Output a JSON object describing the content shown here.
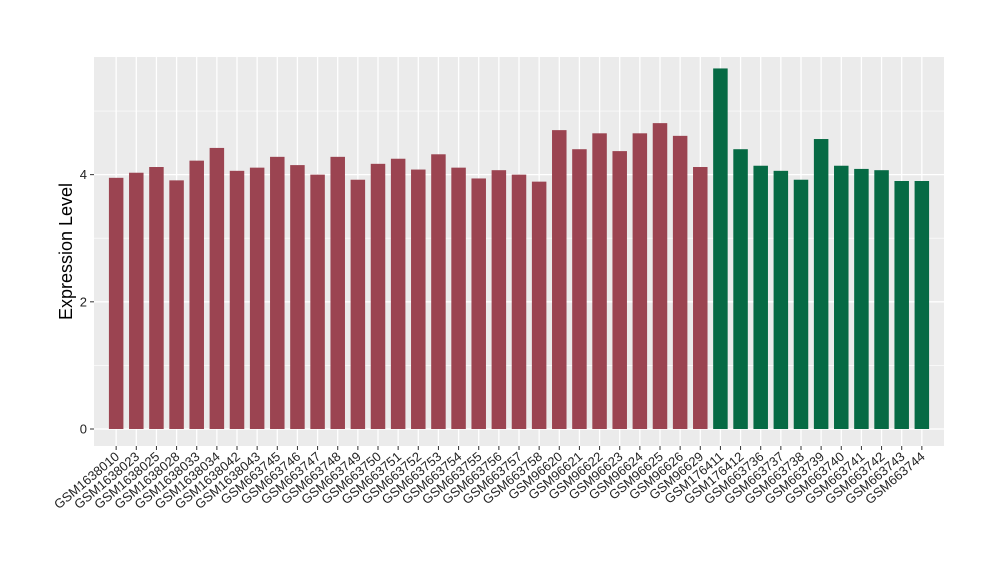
{
  "chart_data": {
    "type": "bar",
    "title": "",
    "xlabel": "",
    "ylabel": "Expression Level",
    "ylim": [
      0,
      5.85
    ],
    "yticks": [
      0,
      2,
      4
    ],
    "grid": true,
    "legend": "none",
    "colors": {
      "group1": "#9b4451",
      "group2": "#066a44",
      "panel": "#ebebeb",
      "gridline": "#ffffff"
    },
    "categories": [
      "GSM1638010",
      "GSM1638023",
      "GSM1638025",
      "GSM1638028",
      "GSM1638033",
      "GSM1638034",
      "GSM1638042",
      "GSM1638043",
      "GSM663745",
      "GSM663746",
      "GSM663747",
      "GSM663748",
      "GSM663749",
      "GSM663750",
      "GSM663751",
      "GSM663752",
      "GSM663753",
      "GSM663754",
      "GSM663755",
      "GSM663756",
      "GSM663757",
      "GSM663758",
      "GSM96620",
      "GSM96621",
      "GSM96622",
      "GSM96623",
      "GSM96624",
      "GSM96625",
      "GSM96626",
      "GSM96629",
      "GSM176411",
      "GSM176412",
      "GSM663736",
      "GSM663737",
      "GSM663738",
      "GSM663739",
      "GSM663740",
      "GSM663741",
      "GSM663742",
      "GSM663743",
      "GSM663744"
    ],
    "values": [
      3.95,
      4.03,
      4.12,
      3.91,
      4.22,
      4.42,
      4.06,
      4.11,
      4.28,
      4.15,
      4.0,
      4.28,
      3.92,
      4.17,
      4.25,
      4.08,
      4.32,
      4.11,
      3.94,
      4.07,
      4.0,
      3.89,
      4.7,
      4.4,
      4.65,
      4.37,
      4.65,
      4.81,
      4.61,
      4.12,
      5.67,
      4.4,
      4.14,
      4.06,
      3.92,
      4.56,
      4.14,
      4.09,
      4.07,
      3.9,
      3.9
    ],
    "groups": [
      1,
      1,
      1,
      1,
      1,
      1,
      1,
      1,
      1,
      1,
      1,
      1,
      1,
      1,
      1,
      1,
      1,
      1,
      1,
      1,
      1,
      1,
      1,
      1,
      1,
      1,
      1,
      1,
      1,
      1,
      2,
      2,
      2,
      2,
      2,
      2,
      2,
      2,
      2,
      2,
      2
    ]
  }
}
